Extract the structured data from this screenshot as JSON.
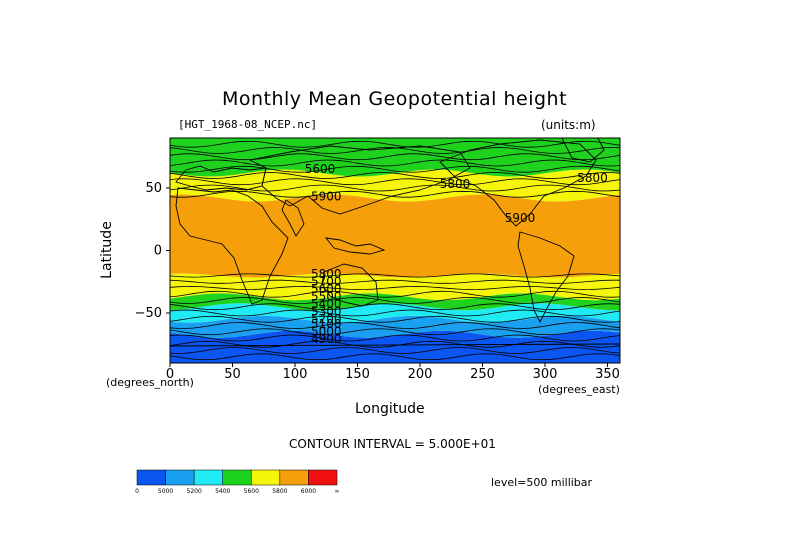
{
  "header": {
    "title": "Monthly Mean Geopotential height",
    "file_label": "[HGT_1968-08_NCEP.nc]",
    "units_label": "(units:m)"
  },
  "axes": {
    "xlabel": "Longitude",
    "ylabel": "Latitude",
    "x_unit": "(degrees_east)",
    "y_unit": "(degrees_north)"
  },
  "footer": {
    "contour_interval": "CONTOUR INTERVAL = 5.000E+01",
    "level": "level=500 millibar"
  },
  "colors": {
    "blue": "#0b55f0",
    "light_blue": "#1aa0f0",
    "cyan": "#20eaf4",
    "green": "#1ed21e",
    "yellow": "#f6f60c",
    "orange": "#f5a00a",
    "red": "#f01010",
    "contour": "#000000"
  },
  "chart_data": {
    "type": "heatmap",
    "title": "Monthly Mean Geopotential height",
    "xlabel": "Longitude",
    "ylabel": "Latitude",
    "xlim": [
      0,
      360
    ],
    "ylim": [
      -90,
      90
    ],
    "x_ticks": [
      0,
      50,
      100,
      150,
      200,
      250,
      300,
      350
    ],
    "y_ticks": [
      -50,
      0,
      50
    ],
    "grid": false,
    "colorbar": {
      "levels": [
        4800,
        5000,
        5200,
        5400,
        5600,
        5800,
        6000
      ],
      "tick_labels": [
        "0",
        "5000",
        "5200",
        "5400",
        "5600",
        "5800",
        "6000",
        "∞"
      ],
      "colors": [
        "#0b55f0",
        "#1aa0f0",
        "#20eaf4",
        "#1ed21e",
        "#f6f60c",
        "#f5a00a",
        "#f01010"
      ]
    },
    "bands": [
      {
        "lat_from": -90,
        "lat_to": -67,
        "color": "#0b55f0"
      },
      {
        "lat_from": -67,
        "lat_to": -55,
        "color": "#1aa0f0"
      },
      {
        "lat_from": -55,
        "lat_to": -45,
        "color": "#20eaf4"
      },
      {
        "lat_from": -45,
        "lat_to": -37,
        "color": "#1ed21e"
      },
      {
        "lat_from": -37,
        "lat_to": -20,
        "color": "#f6f60c"
      },
      {
        "lat_from": -20,
        "lat_to": 42,
        "color": "#f5a00a"
      },
      {
        "lat_from": 42,
        "lat_to": 62,
        "color": "#f6f60c"
      },
      {
        "lat_from": 62,
        "lat_to": 90,
        "color": "#1ed21e"
      }
    ],
    "contour_labels": [
      {
        "text": "5600",
        "lon": 120,
        "lat": 62
      },
      {
        "text": "5900",
        "lon": 125,
        "lat": 40
      },
      {
        "text": "5800",
        "lon": 228,
        "lat": 50
      },
      {
        "text": "5800",
        "lon": 338,
        "lat": 55
      },
      {
        "text": "5900",
        "lon": 280,
        "lat": 23
      },
      {
        "text": "5800",
        "lon": 125,
        "lat": -22
      },
      {
        "text": "5700",
        "lon": 125,
        "lat": -28
      },
      {
        "text": "5600",
        "lon": 125,
        "lat": -34
      },
      {
        "text": "5500",
        "lon": 125,
        "lat": -40
      },
      {
        "text": "5400",
        "lon": 125,
        "lat": -46
      },
      {
        "text": "5300",
        "lon": 125,
        "lat": -52
      },
      {
        "text": "5200",
        "lon": 125,
        "lat": -58
      },
      {
        "text": "5100",
        "lon": 125,
        "lat": -62
      },
      {
        "text": "5000",
        "lon": 125,
        "lat": -68
      },
      {
        "text": "4900",
        "lon": 125,
        "lat": -74
      }
    ]
  }
}
